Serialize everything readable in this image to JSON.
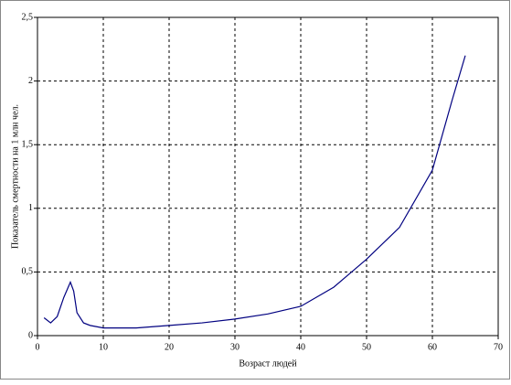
{
  "chart_data": {
    "type": "line",
    "x_label": "Возраст людей",
    "y_label": "Показатель смертности на 1 млн чел.",
    "x": [
      1,
      2,
      3,
      4,
      5,
      5.5,
      6,
      7,
      8,
      10,
      15,
      20,
      25,
      30,
      35,
      40,
      45,
      50,
      55,
      60,
      63,
      65
    ],
    "series": [
      {
        "color": "#000080",
        "values": [
          0.14,
          0.1,
          0.15,
          0.3,
          0.42,
          0.35,
          0.18,
          0.1,
          0.08,
          0.06,
          0.06,
          0.08,
          0.1,
          0.13,
          0.17,
          0.23,
          0.38,
          0.6,
          0.85,
          1.3,
          1.85,
          2.2
        ]
      }
    ],
    "xlim": [
      0,
      70
    ],
    "xticks": [
      0,
      10,
      20,
      30,
      40,
      50,
      60,
      70
    ],
    "ylim": [
      0,
      2.5
    ],
    "yticks": [
      0,
      {
        "value": 0.5,
        "label": "0,5"
      },
      1,
      {
        "value": 1.5,
        "label": "1,5"
      },
      2,
      {
        "value": 2.5,
        "label": "2,5"
      }
    ],
    "grid": true
  }
}
